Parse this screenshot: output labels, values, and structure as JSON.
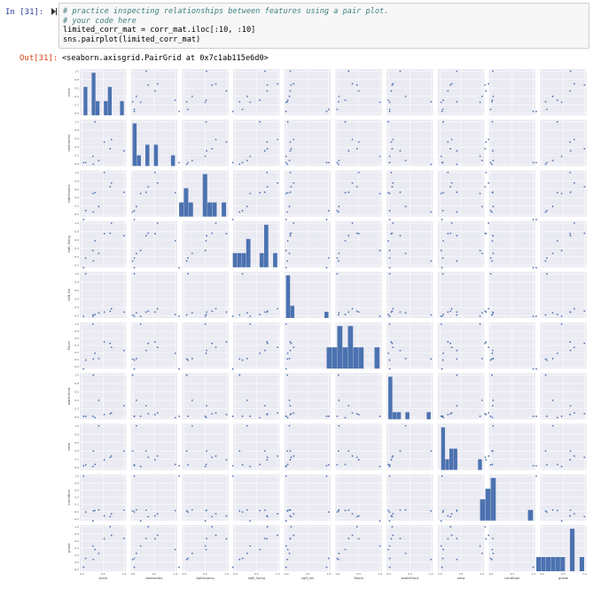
{
  "input_cell": {
    "prompt": "In [31]:",
    "code_lines": [
      "# practice inspecting relationships between features using a pair plot.",
      "# your code here",
      "limited_corr_mat = corr_mat.iloc[:10, :10]",
      "sns.pairplot(limited_corr_mat)"
    ]
  },
  "output_cell": {
    "prompt": "Out[31]:",
    "text": "<seaborn.axisgrid.PairGrid at 0x7c1ab115e6d0>"
  },
  "colors": {
    "axes_bg": "#eaeaf2",
    "mark": "#4c72b0",
    "grid": "#ffffff"
  },
  "chart_data": {
    "type": "scatter",
    "subtype": "pairplot",
    "variables": [
      "price",
      "bedrooms",
      "bathrooms",
      "sqft_living",
      "sqft_lot",
      "floors",
      "waterfront",
      "view",
      "condition",
      "grade"
    ],
    "grid": true,
    "x_ticks": [
      "0.0",
      "0.5",
      "1.0"
    ],
    "y_tick_sets": {
      "price": [
        "0.0",
        "0.2",
        "0.4",
        "0.6",
        "0.8",
        "1.0"
      ],
      "bedrooms": [
        "0.0",
        "0.2",
        "0.4",
        "0.6",
        "0.8",
        "1.0"
      ],
      "bathrooms": [
        "0.0",
        "0.2",
        "0.4",
        "0.6",
        "0.8",
        "1.0"
      ],
      "sqft_living": [
        "0.0",
        "0.2",
        "0.4",
        "0.6",
        "0.8",
        "1.0"
      ],
      "sqft_lot": [
        "0.0",
        "0.2",
        "0.4",
        "0.6",
        "0.8",
        "1.0"
      ],
      "floors": [
        "-0.2",
        "0.0",
        "0.2",
        "0.4",
        "0.6",
        "0.8",
        "1.0"
      ],
      "waterfront": [
        "0.0",
        "0.2",
        "0.4",
        "0.6",
        "0.8",
        "1.0"
      ],
      "view": [
        "0.0",
        "0.2",
        "0.4",
        "0.6",
        "0.8",
        "1.0"
      ],
      "condition": [
        "-0.2",
        "0.0",
        "0.2",
        "0.4",
        "0.6",
        "0.8",
        "1.0"
      ],
      "grade": [
        "-0.2",
        "0.0",
        "0.2",
        "0.4",
        "0.6",
        "0.8",
        "1.0"
      ]
    },
    "values": {
      "price": [
        1.0,
        0.31,
        0.53,
        0.7,
        0.09,
        0.26,
        0.27,
        0.4,
        0.04,
        0.67
      ],
      "bedrooms": [
        0.31,
        1.0,
        0.52,
        0.58,
        0.03,
        0.18,
        -0.01,
        0.08,
        0.03,
        0.36
      ],
      "bathrooms": [
        0.53,
        0.52,
        1.0,
        0.75,
        0.09,
        0.5,
        0.06,
        0.19,
        -0.12,
        0.66
      ],
      "sqft_living": [
        0.7,
        0.58,
        0.75,
        1.0,
        0.17,
        0.35,
        0.1,
        0.28,
        -0.06,
        0.76
      ],
      "sqft_lot": [
        0.09,
        0.03,
        0.09,
        0.17,
        1.0,
        -0.01,
        0.02,
        0.07,
        -0.01,
        0.11
      ],
      "floors": [
        0.26,
        0.18,
        0.5,
        0.35,
        -0.01,
        1.0,
        0.02,
        0.03,
        -0.26,
        0.46
      ],
      "waterfront": [
        0.27,
        -0.01,
        0.06,
        0.1,
        0.02,
        0.02,
        1.0,
        0.4,
        0.02,
        0.08
      ],
      "view": [
        0.4,
        0.08,
        0.19,
        0.28,
        0.07,
        0.03,
        0.4,
        1.0,
        0.05,
        0.25
      ],
      "condition": [
        0.04,
        0.03,
        -0.12,
        -0.06,
        -0.01,
        -0.26,
        0.02,
        0.05,
        1.0,
        -0.14
      ],
      "grade": [
        0.67,
        0.36,
        0.66,
        0.76,
        0.11,
        0.46,
        0.08,
        0.25,
        -0.14,
        1.0
      ]
    }
  }
}
